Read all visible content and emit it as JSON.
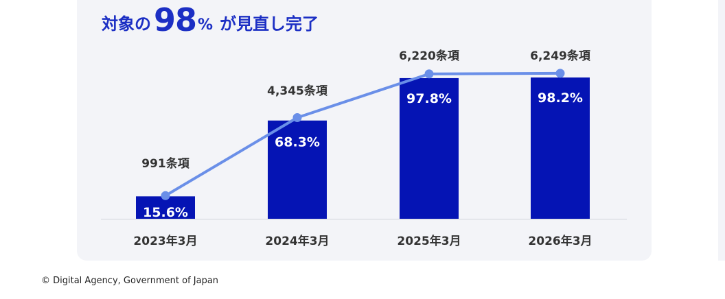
{
  "headline": {
    "prefix": "対象の",
    "big_number": "98",
    "percent_sign": "%",
    "suffix": "が見直し完了"
  },
  "footer": {
    "copyright": "© Digital Agency, Government of Japan"
  },
  "colors": {
    "bar": "#0514b4",
    "line": "#6a8fe8",
    "headline": "#1c2fc4",
    "card_background": "#f3f4f8",
    "axis_text": "#333333"
  },
  "chart_data": {
    "type": "bar",
    "title": "",
    "categories": [
      "2023年3月",
      "2024年3月",
      "2025年3月",
      "2026年3月"
    ],
    "series": [
      {
        "type": "bar",
        "values": [
          991,
          4345,
          6220,
          6249
        ],
        "data_labels": [
          "991条項",
          "4,345条項",
          "6,220条項",
          "6,249条項"
        ]
      },
      {
        "type": "line",
        "values": [
          15.6,
          68.3,
          97.8,
          98.2
        ],
        "data_labels": [
          "15.6%",
          "68.3%",
          "97.8%",
          "98.2%"
        ]
      }
    ],
    "xlabel": "",
    "ylabel": "",
    "ylim": [
      0,
      6400
    ],
    "grid": false,
    "legend": "none"
  }
}
